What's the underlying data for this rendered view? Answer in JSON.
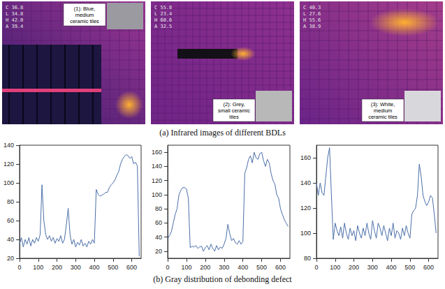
{
  "images": {
    "caption": "(a) Infrared images of  different BDLs",
    "panels": [
      {
        "label": "(1): Blue, medium ceramic tiles",
        "readings": [
          "C 36.8",
          "L 34.8",
          "H 42.0",
          "A 39.4"
        ]
      },
      {
        "label": "(2): Grey, small ceramic tiles",
        "readings": [
          "C 55.8",
          "L 23.4",
          "H 60.6",
          "A 32.5"
        ]
      },
      {
        "label": "(3): White, medium ceramic tiles",
        "readings": [
          "C 40.3",
          "L 27.6",
          "H 55.6",
          "A 38.9"
        ]
      }
    ]
  },
  "charts_caption": "(b) Gray distribution of debonding defect",
  "chart_data": [
    {
      "type": "line",
      "color": "#4a6fa8",
      "grid": false,
      "x": [
        0,
        10,
        20,
        30,
        40,
        50,
        60,
        70,
        80,
        90,
        100,
        110,
        120,
        130,
        140,
        150,
        160,
        170,
        180,
        190,
        200,
        210,
        220,
        230,
        240,
        250,
        260,
        270,
        280,
        290,
        300,
        310,
        320,
        330,
        340,
        350,
        360,
        370,
        380,
        390,
        400,
        410,
        420,
        430,
        440,
        450,
        460,
        470,
        480,
        490,
        500,
        510,
        520,
        530,
        540,
        550,
        560,
        570,
        580,
        590,
        600,
        610,
        620,
        630,
        640
      ],
      "values": [
        35,
        42,
        32,
        40,
        35,
        42,
        33,
        40,
        36,
        42,
        38,
        45,
        98,
        60,
        45,
        40,
        44,
        38,
        42,
        36,
        41,
        38,
        44,
        36,
        40,
        55,
        73,
        45,
        35,
        40,
        32,
        37,
        34,
        40,
        33,
        36,
        32,
        38,
        35,
        40,
        36,
        93,
        88,
        86,
        87,
        88,
        90,
        90,
        95,
        98,
        100,
        103,
        108,
        112,
        120,
        125,
        128,
        130,
        129,
        126,
        128,
        120,
        122,
        118,
        22
      ],
      "xlim": [
        0,
        650
      ],
      "xticks": [
        0,
        100,
        200,
        300,
        400,
        500,
        600
      ],
      "ylim": [
        20,
        140
      ],
      "yticks": [
        20,
        40,
        60,
        80,
        100,
        120,
        140
      ]
    },
    {
      "type": "line",
      "color": "#4a6fa8",
      "grid": false,
      "x": [
        0,
        10,
        20,
        30,
        40,
        50,
        60,
        70,
        80,
        90,
        100,
        110,
        120,
        130,
        140,
        150,
        160,
        170,
        180,
        190,
        200,
        210,
        220,
        230,
        240,
        250,
        260,
        270,
        280,
        290,
        300,
        310,
        320,
        330,
        340,
        350,
        360,
        370,
        380,
        390,
        400,
        410,
        420,
        430,
        440,
        450,
        460,
        470,
        480,
        490,
        500,
        510,
        520,
        530,
        540,
        550,
        560,
        570,
        580,
        590,
        600,
        610,
        620,
        630,
        640
      ],
      "values": [
        38,
        42,
        48,
        60,
        72,
        80,
        100,
        106,
        110,
        110,
        108,
        95,
        25,
        27,
        26,
        28,
        24,
        26,
        27,
        20,
        25,
        28,
        22,
        30,
        24,
        20,
        28,
        22,
        26,
        24,
        30,
        38,
        58,
        45,
        35,
        38,
        32,
        30,
        35,
        30,
        34,
        130,
        138,
        150,
        155,
        145,
        160,
        152,
        150,
        158,
        160,
        148,
        140,
        150,
        145,
        130,
        120,
        115,
        100,
        95,
        80,
        72,
        65,
        60,
        55
      ],
      "xlim": [
        0,
        650
      ],
      "xticks": [
        0,
        100,
        200,
        300,
        400,
        500,
        600
      ],
      "ylim": [
        10,
        170
      ],
      "yticks": [
        20,
        40,
        60,
        80,
        100,
        120,
        140,
        160
      ]
    },
    {
      "type": "line",
      "color": "#4a6fa8",
      "grid": false,
      "x": [
        0,
        10,
        20,
        30,
        40,
        50,
        60,
        70,
        80,
        90,
        100,
        110,
        120,
        130,
        140,
        150,
        160,
        170,
        180,
        190,
        200,
        210,
        220,
        230,
        240,
        250,
        260,
        270,
        280,
        290,
        300,
        310,
        320,
        330,
        340,
        350,
        360,
        370,
        380,
        390,
        400,
        410,
        420,
        430,
        440,
        450,
        460,
        470,
        480,
        490,
        500,
        510,
        520,
        530,
        540,
        550,
        560,
        570,
        580,
        590,
        600,
        610,
        620,
        630,
        640
      ],
      "values": [
        140,
        130,
        140,
        132,
        130,
        145,
        160,
        168,
        130,
        95,
        108,
        102,
        98,
        105,
        96,
        108,
        100,
        95,
        104,
        98,
        102,
        94,
        106,
        100,
        96,
        104,
        98,
        108,
        100,
        95,
        110,
        102,
        96,
        108,
        104,
        98,
        106,
        100,
        94,
        104,
        98,
        108,
        96,
        102,
        100,
        95,
        104,
        98,
        106,
        100,
        96,
        115,
        118,
        120,
        130,
        155,
        145,
        130,
        125,
        122,
        125,
        130,
        128,
        115,
        100
      ],
      "xlim": [
        0,
        650
      ],
      "xticks": [
        0,
        100,
        200,
        300,
        400,
        500,
        600
      ],
      "ylim": [
        80,
        170
      ],
      "yticks": [
        80,
        100,
        120,
        140,
        160
      ]
    }
  ]
}
